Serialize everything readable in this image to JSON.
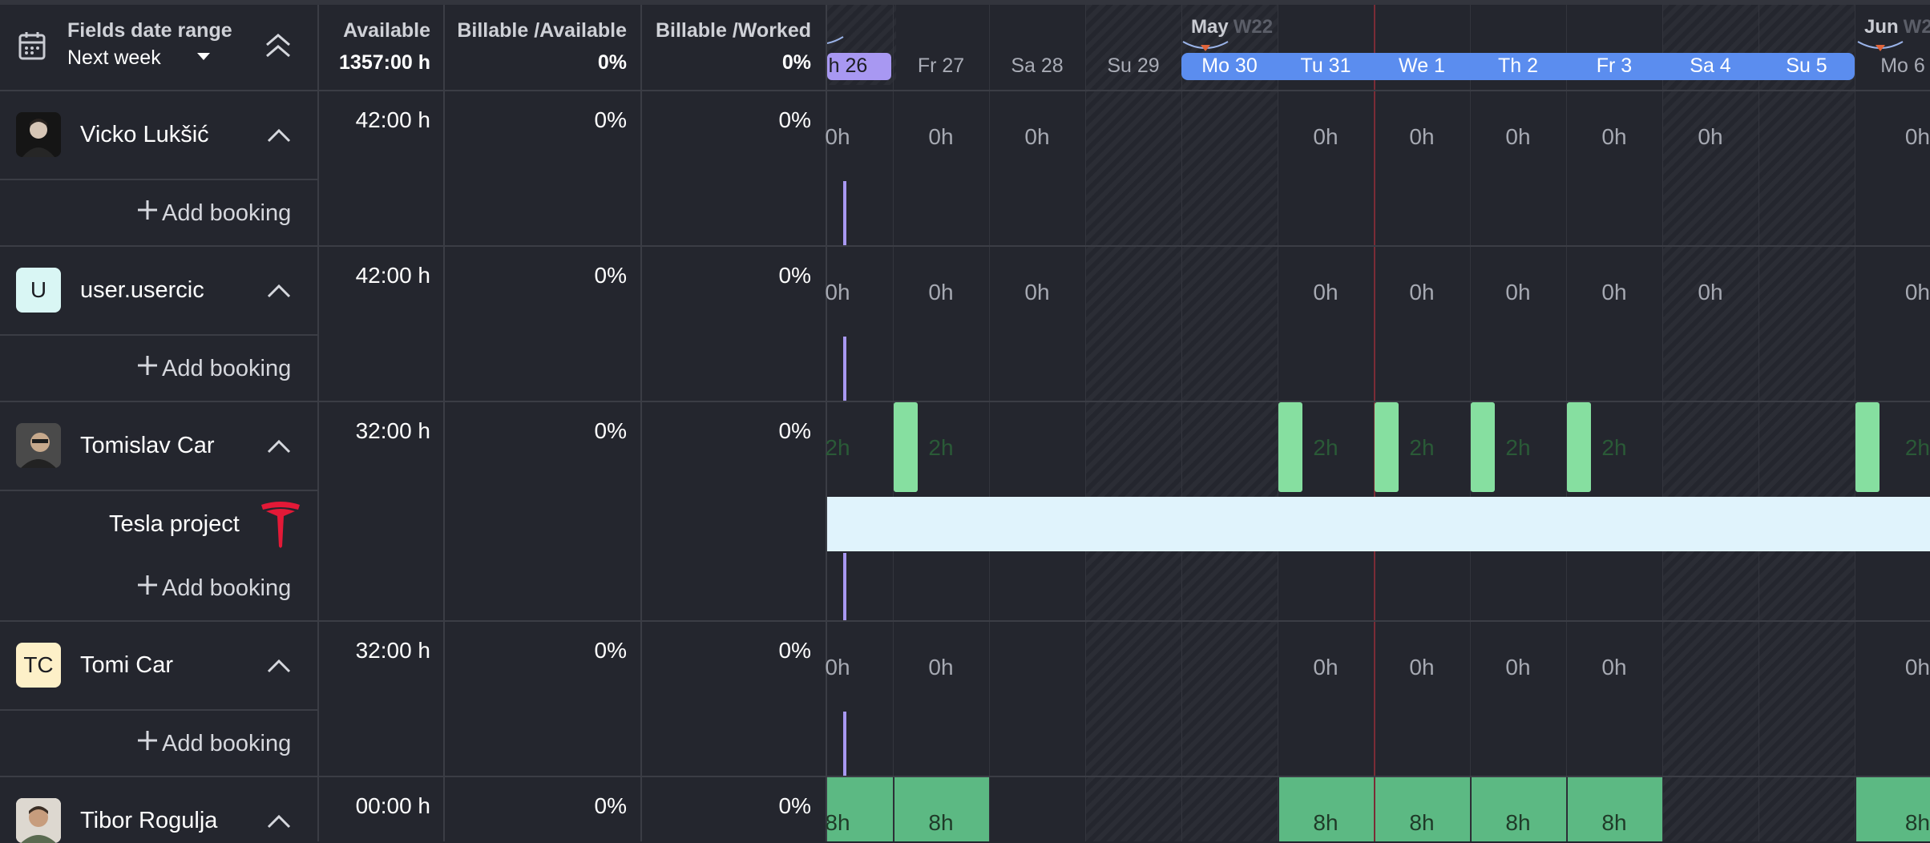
{
  "header": {
    "range_title": "Fields date range",
    "range_value": "Next week",
    "columns": [
      {
        "label": "Available",
        "total": "1357:00 h"
      },
      {
        "label": "Billable /Available",
        "total": "0%"
      },
      {
        "label": "Billable /Worked",
        "total": "0%"
      }
    ]
  },
  "timeline": {
    "months": [
      {
        "name": "May",
        "week": "W22"
      },
      {
        "name": "Jun",
        "week": "W2"
      }
    ],
    "days": [
      "h 26",
      "Fr 27",
      "Sa 28",
      "Su 29",
      "Mo 30",
      "Tu 31",
      "We 1",
      "Th 2",
      "Fr 3",
      "Sa 4",
      "Su 5",
      "Mo 6"
    ]
  },
  "add_booking_label": "Add booking",
  "people": [
    {
      "name": "Vicko Lukšić",
      "avatar": "photo",
      "available": "42:00 h",
      "ba": "0%",
      "bw": "0%",
      "hours": [
        "0h",
        "0h",
        "0h",
        "",
        "",
        "0h",
        "0h",
        "0h",
        "0h",
        "0h",
        "",
        "0h"
      ]
    },
    {
      "name": "user.usercic",
      "avatar": "U",
      "avatar_color": "#d9f6f4",
      "available": "42:00 h",
      "ba": "0%",
      "bw": "0%",
      "hours": [
        "0h",
        "0h",
        "0h",
        "",
        "",
        "0h",
        "0h",
        "0h",
        "0h",
        "0h",
        "",
        "0h"
      ]
    },
    {
      "name": "Tomislav Car",
      "avatar": "photo",
      "available": "32:00 h",
      "ba": "0%",
      "bw": "0%",
      "hours": [
        "2h",
        "2h",
        "",
        "",
        "",
        "2h",
        "2h",
        "2h",
        "2h",
        "",
        "",
        "2h"
      ],
      "project": {
        "name": "Tesla project",
        "icon": "tesla-logo-icon",
        "color": "#e31937"
      }
    },
    {
      "name": "Tomi Car",
      "avatar": "TC",
      "avatar_color": "#fdf0c8",
      "available": "32:00 h",
      "ba": "0%",
      "bw": "0%",
      "hours": [
        "0h",
        "0h",
        "",
        "",
        "",
        "0h",
        "0h",
        "0h",
        "0h",
        "",
        "",
        "0h"
      ]
    },
    {
      "name": "Tibor Rogulja",
      "avatar": "photo",
      "available": "00:00 h",
      "ba": "0%",
      "bw": "0%",
      "hours": [
        "8h",
        "8h",
        "",
        "",
        "",
        "8h",
        "8h",
        "8h",
        "8h",
        "",
        "",
        "8h"
      ]
    }
  ],
  "colors": {
    "selection": "#5b8def",
    "today": "#a898f2",
    "booking_light": "#86dfa0",
    "booking_full": "#5cb983",
    "project_bar": "#e0f3fc"
  }
}
